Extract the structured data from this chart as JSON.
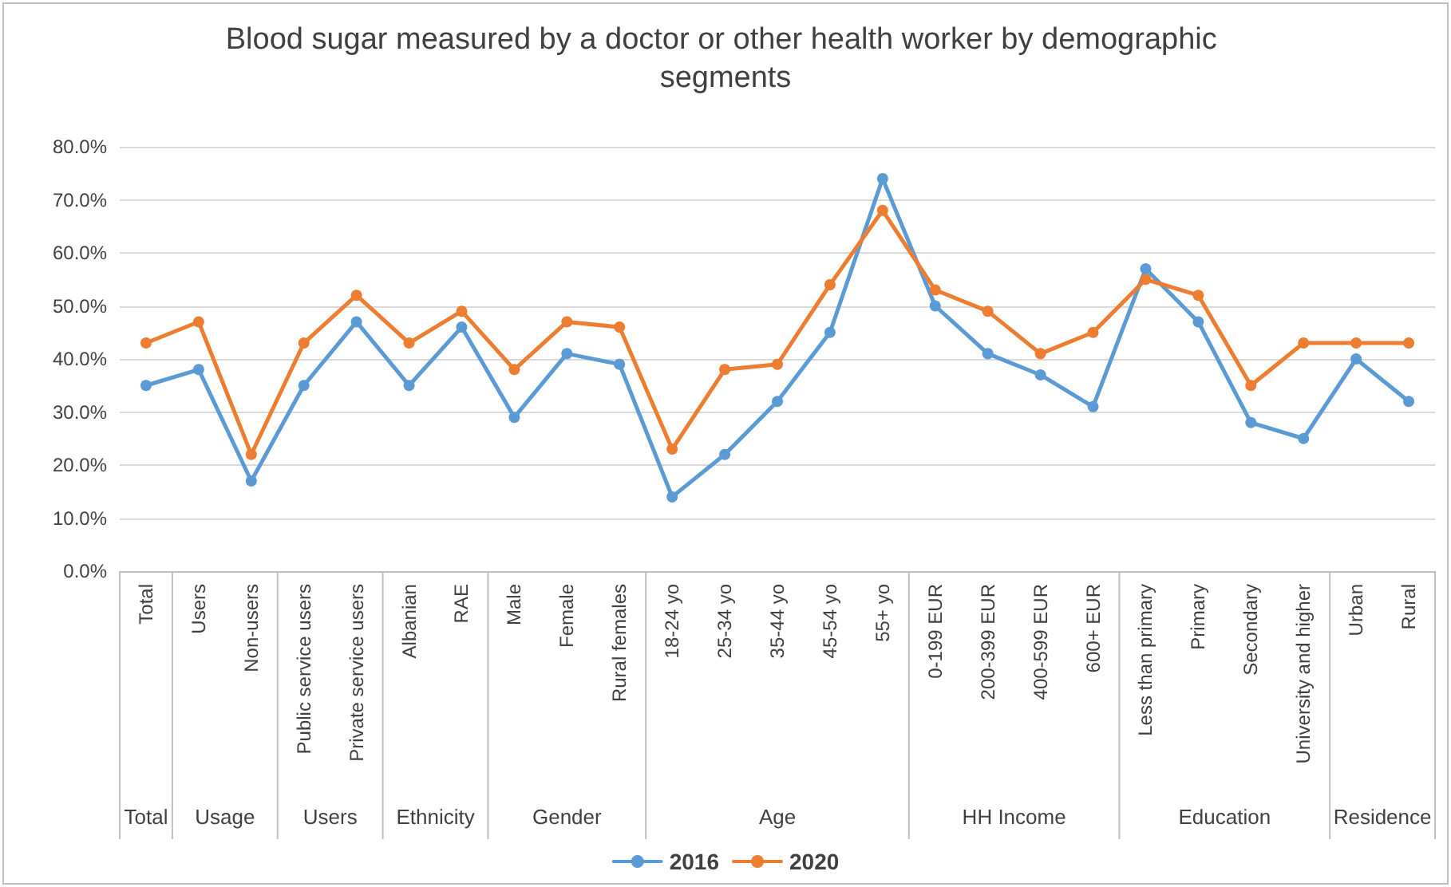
{
  "chart_data": {
    "type": "line",
    "title": "Blood sugar measured by a doctor or other health worker by demographic segments",
    "categories": [
      "Total",
      "Users",
      "Non-users",
      "Public service users",
      "Private service users",
      "Albanian",
      "RAE",
      "Male",
      "Female",
      "Rural females",
      "18-24 yo",
      "25-34 yo",
      "35-44 yo",
      "45-54 yo",
      "55+ yo",
      "0-199 EUR",
      "200-399 EUR",
      "400-599 EUR",
      "600+ EUR",
      "Less than primary",
      "Primary",
      "Secondary",
      "University and higher",
      "Urban",
      "Rural"
    ],
    "series": [
      {
        "name": "2016",
        "color": "#5b9bd5",
        "values": [
          35,
          38,
          17,
          35,
          47,
          35,
          46,
          29,
          41,
          39,
          14,
          22,
          32,
          45,
          74,
          50,
          41,
          37,
          31,
          57,
          47,
          28,
          25,
          40,
          32
        ]
      },
      {
        "name": "2020",
        "color": "#ed7d31",
        "values": [
          43,
          47,
          22,
          43,
          52,
          43,
          49,
          38,
          47,
          46,
          23,
          38,
          39,
          54,
          68,
          53,
          49,
          41,
          45,
          55,
          52,
          35,
          43,
          43,
          43
        ]
      }
    ],
    "ylim": [
      0,
      80
    ],
    "yticks": [
      {
        "value": 0,
        "label": "0.0%"
      },
      {
        "value": 10,
        "label": "10.0%"
      },
      {
        "value": 20,
        "label": "20.0%"
      },
      {
        "value": 30,
        "label": "30.0%"
      },
      {
        "value": 40,
        "label": "40.0%"
      },
      {
        "value": 50,
        "label": "50.0%"
      },
      {
        "value": 60,
        "label": "60.0%"
      },
      {
        "value": 70,
        "label": "70.0%"
      },
      {
        "value": 80,
        "label": "80.0%"
      }
    ],
    "grid": "y",
    "legend": "bottom",
    "marker": "circle",
    "line_style": "solid",
    "annotations": [
      "Total",
      "Usage",
      "Users",
      "Ethnicity",
      "Gender",
      "Age",
      "HH Income",
      "Education",
      "Residence"
    ]
  }
}
